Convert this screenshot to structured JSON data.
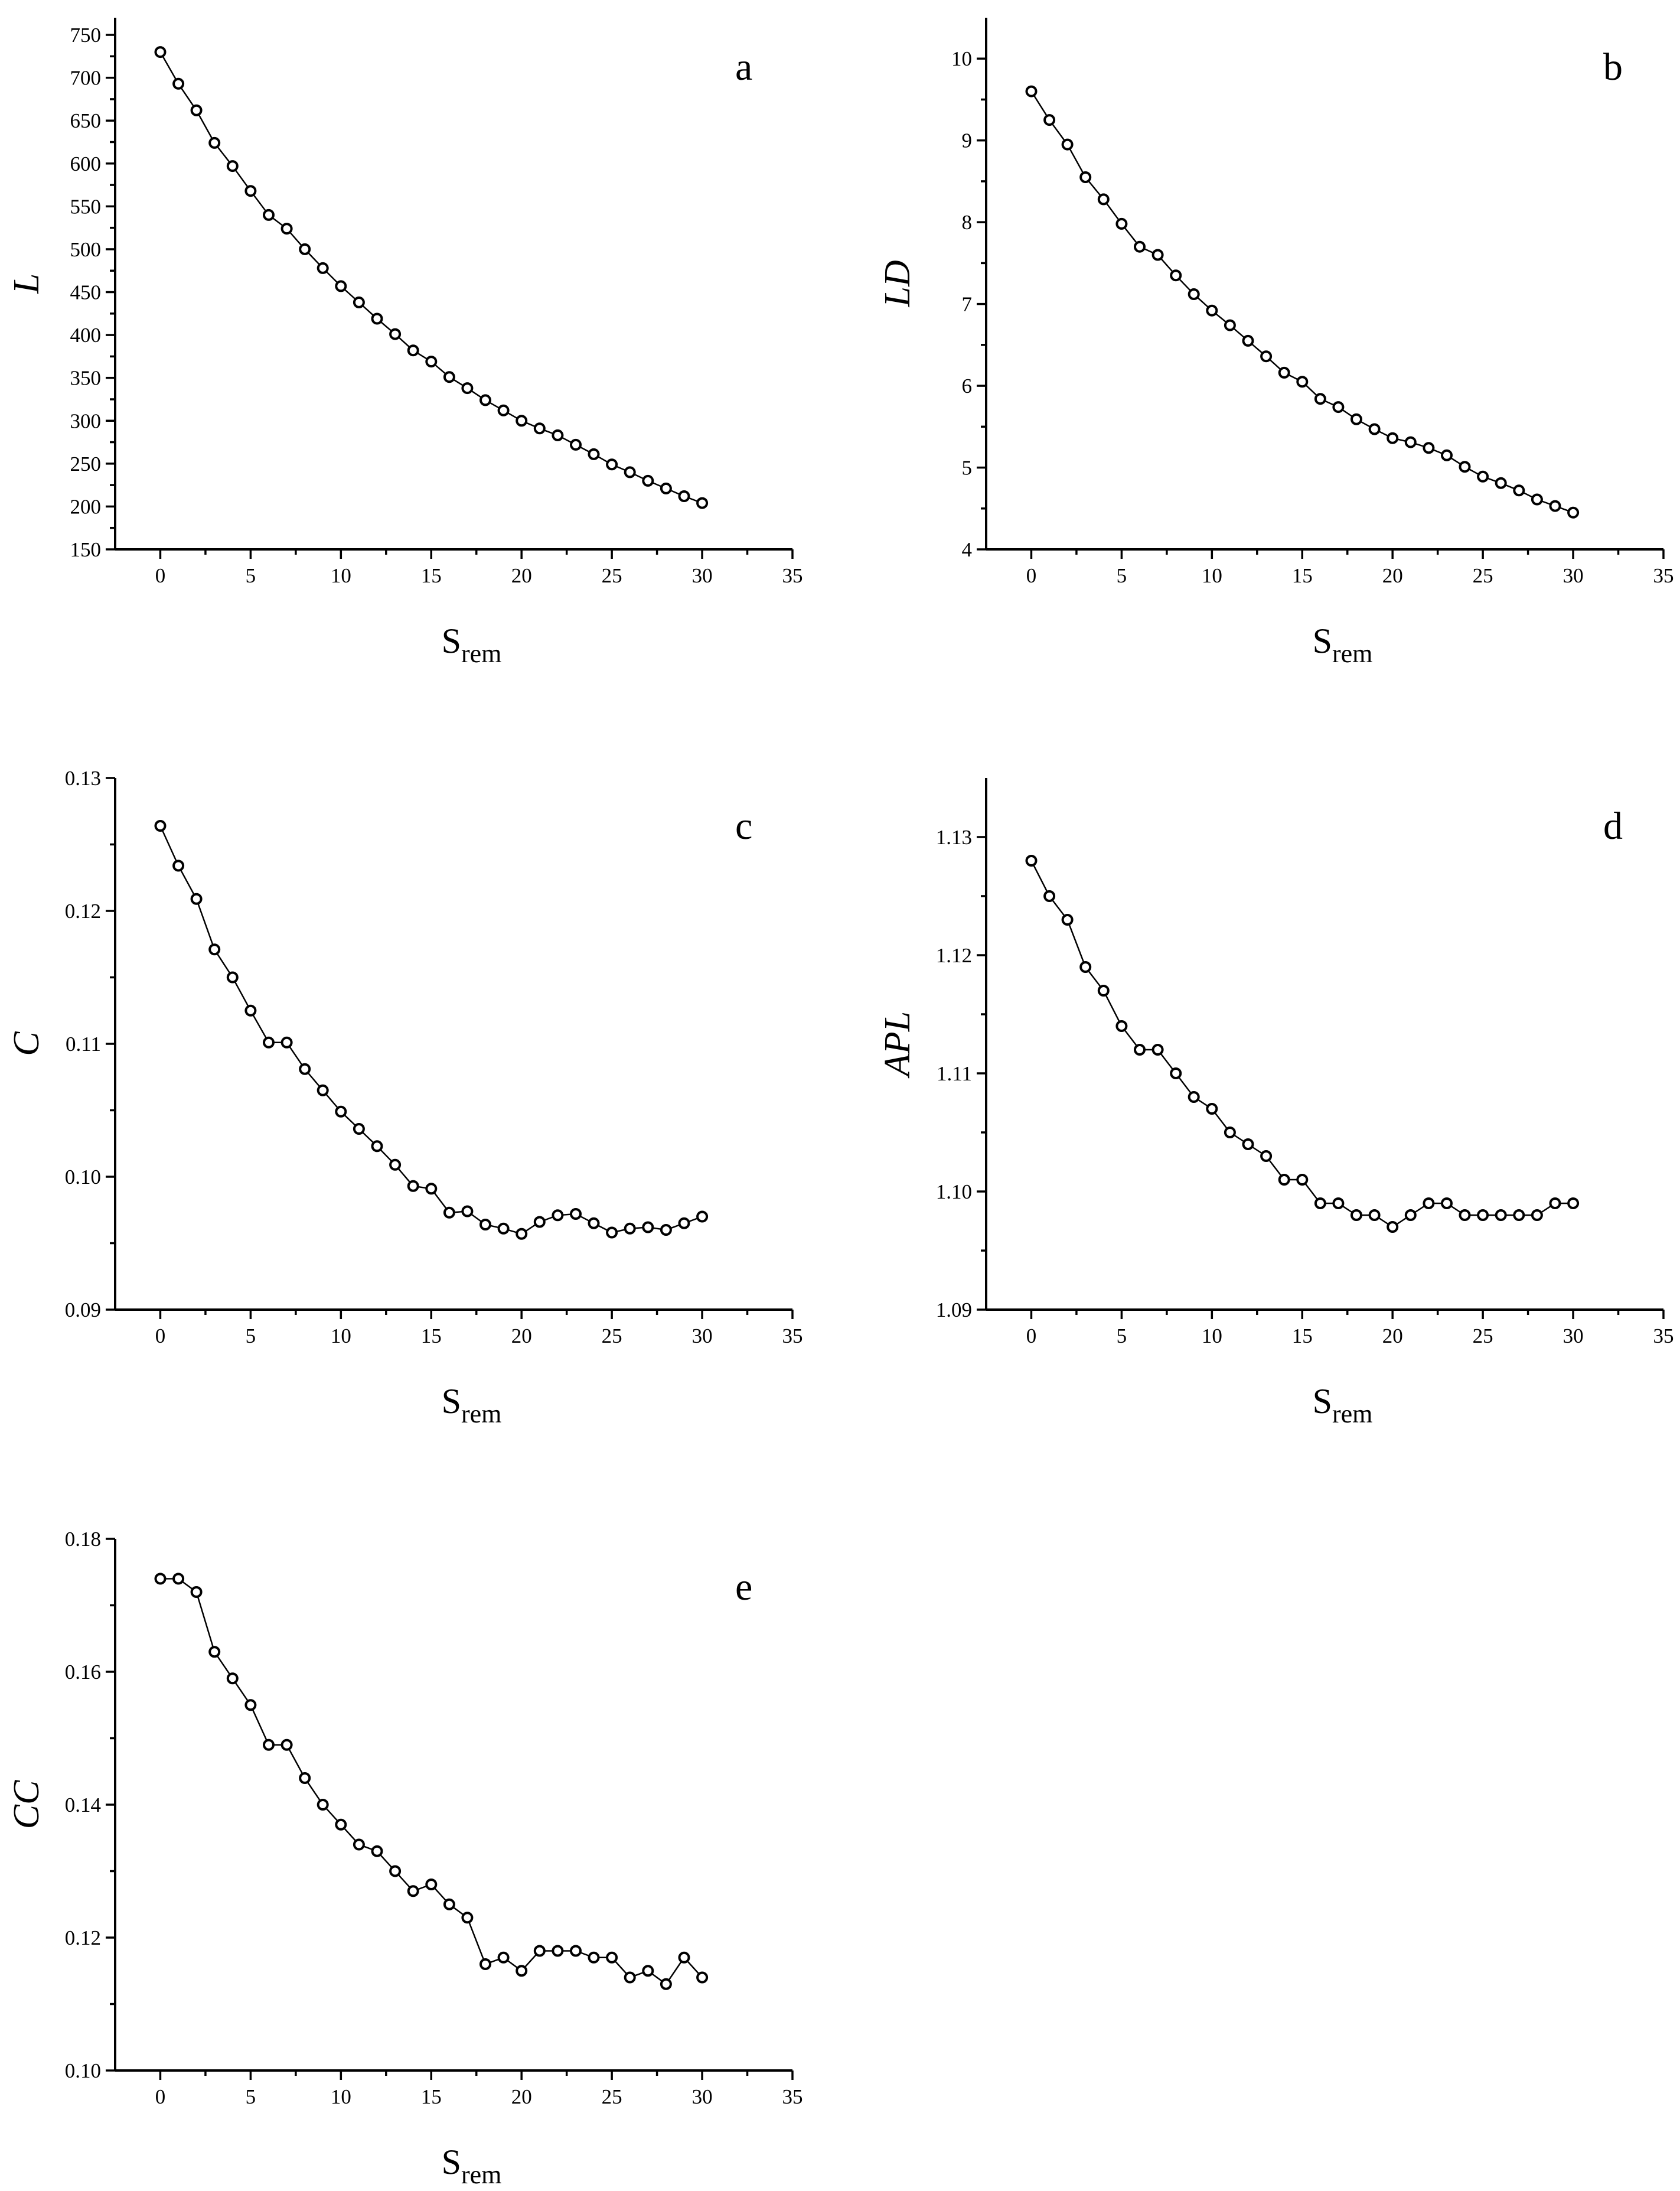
{
  "chart_data": [
    {
      "type": "line",
      "panel_letter": "a",
      "ylabel": "L",
      "xlabel": "S",
      "xlabel_sub": "rem",
      "xlim": [
        -2.5,
        35
      ],
      "ylim": [
        150,
        770
      ],
      "xticks": [
        "0",
        "5",
        "10",
        "15",
        "20",
        "25",
        "30",
        "35"
      ],
      "yticks": [
        "150",
        "200",
        "250",
        "300",
        "350",
        "400",
        "450",
        "500",
        "550",
        "600",
        "650",
        "700",
        "750"
      ],
      "x": [
        0,
        1,
        2,
        3,
        4,
        5,
        6,
        7,
        8,
        9,
        10,
        11,
        12,
        13,
        14,
        15,
        16,
        17,
        18,
        19,
        20,
        21,
        22,
        23,
        24,
        25,
        26,
        27,
        28,
        29,
        30
      ],
      "values": [
        730,
        693,
        662,
        624,
        597,
        568,
        540,
        524,
        500,
        478,
        457,
        438,
        419,
        401,
        382,
        369,
        351,
        338,
        324,
        312,
        300,
        291,
        283,
        272,
        261,
        249,
        240,
        230,
        221,
        212,
        204
      ]
    },
    {
      "type": "line",
      "panel_letter": "b",
      "ylabel": "LD",
      "xlabel": "S",
      "xlabel_sub": "rem",
      "xlim": [
        -2.5,
        35
      ],
      "ylim": [
        4,
        10.5
      ],
      "xticks": [
        "0",
        "5",
        "10",
        "15",
        "20",
        "25",
        "30",
        "35"
      ],
      "yticks": [
        "4",
        "5",
        "6",
        "7",
        "8",
        "9",
        "10"
      ],
      "x": [
        0,
        1,
        2,
        3,
        4,
        5,
        6,
        7,
        8,
        9,
        10,
        11,
        12,
        13,
        14,
        15,
        16,
        17,
        18,
        19,
        20,
        21,
        22,
        23,
        24,
        25,
        26,
        27,
        28,
        29,
        30
      ],
      "values": [
        9.6,
        9.25,
        8.95,
        8.55,
        8.28,
        7.98,
        7.7,
        7.6,
        7.35,
        7.12,
        6.92,
        6.74,
        6.55,
        6.36,
        6.16,
        6.05,
        5.84,
        5.74,
        5.59,
        5.47,
        5.36,
        5.31,
        5.24,
        5.15,
        5.01,
        4.89,
        4.81,
        4.72,
        4.61,
        4.53,
        4.45
      ]
    },
    {
      "type": "line",
      "panel_letter": "c",
      "ylabel": "C",
      "xlabel": "S",
      "xlabel_sub": "rem",
      "xlim": [
        -2.5,
        35
      ],
      "ylim": [
        0.09,
        0.13
      ],
      "xticks": [
        "0",
        "5",
        "10",
        "15",
        "20",
        "25",
        "30",
        "35"
      ],
      "yticks": [
        "0.09",
        "0.10",
        "0.11",
        "0.12",
        "0.13"
      ],
      "x": [
        0,
        1,
        2,
        3,
        4,
        5,
        6,
        7,
        8,
        9,
        10,
        11,
        12,
        13,
        14,
        15,
        16,
        17,
        18,
        19,
        20,
        21,
        22,
        23,
        24,
        25,
        26,
        27,
        28,
        29,
        30
      ],
      "values": [
        0.1264,
        0.1234,
        0.1209,
        0.1171,
        0.115,
        0.1125,
        0.1101,
        0.1101,
        0.1081,
        0.1065,
        0.1049,
        0.1036,
        0.1023,
        0.1009,
        0.0993,
        0.0991,
        0.0973,
        0.0974,
        0.0964,
        0.0961,
        0.0957,
        0.0966,
        0.0971,
        0.0972,
        0.0965,
        0.0958,
        0.0961,
        0.0962,
        0.096,
        0.0965,
        0.097
      ]
    },
    {
      "type": "line",
      "panel_letter": "d",
      "ylabel": "APL",
      "xlabel": "S",
      "xlabel_sub": "rem",
      "xlim": [
        -2.5,
        35
      ],
      "ylim": [
        1.09,
        1.135
      ],
      "xticks": [
        "0",
        "5",
        "10",
        "15",
        "20",
        "25",
        "30",
        "35"
      ],
      "yticks": [
        "1.09",
        "1.10",
        "1.11",
        "1.12",
        "1.13"
      ],
      "x": [
        0,
        1,
        2,
        3,
        4,
        5,
        6,
        7,
        8,
        9,
        10,
        11,
        12,
        13,
        14,
        15,
        16,
        17,
        18,
        19,
        20,
        21,
        22,
        23,
        24,
        25,
        26,
        27,
        28,
        29,
        30
      ],
      "values": [
        1.128,
        1.125,
        1.123,
        1.119,
        1.117,
        1.114,
        1.112,
        1.112,
        1.11,
        1.108,
        1.107,
        1.105,
        1.104,
        1.103,
        1.101,
        1.101,
        1.099,
        1.099,
        1.098,
        1.098,
        1.097,
        1.098,
        1.099,
        1.099,
        1.098,
        1.098,
        1.098,
        1.098,
        1.098,
        1.099,
        1.099
      ]
    },
    {
      "type": "line",
      "panel_letter": "e",
      "ylabel": "CC",
      "xlabel": "S",
      "xlabel_sub": "rem",
      "xlim": [
        -2.5,
        35
      ],
      "ylim": [
        0.1,
        0.18
      ],
      "xticks": [
        "0",
        "5",
        "10",
        "15",
        "20",
        "25",
        "30",
        "35"
      ],
      "yticks": [
        "0.10",
        "0.12",
        "0.14",
        "0.16",
        "0.18"
      ],
      "x": [
        0,
        1,
        2,
        3,
        4,
        5,
        6,
        7,
        8,
        9,
        10,
        11,
        12,
        13,
        14,
        15,
        16,
        17,
        18,
        19,
        20,
        21,
        22,
        23,
        24,
        25,
        26,
        27,
        28,
        29,
        30
      ],
      "values": [
        0.174,
        0.174,
        0.172,
        0.163,
        0.159,
        0.155,
        0.149,
        0.149,
        0.144,
        0.14,
        0.137,
        0.134,
        0.133,
        0.13,
        0.127,
        0.128,
        0.125,
        0.123,
        0.116,
        0.117,
        0.115,
        0.118,
        0.118,
        0.118,
        0.117,
        0.117,
        0.114,
        0.115,
        0.113,
        0.117,
        0.114
      ]
    }
  ]
}
